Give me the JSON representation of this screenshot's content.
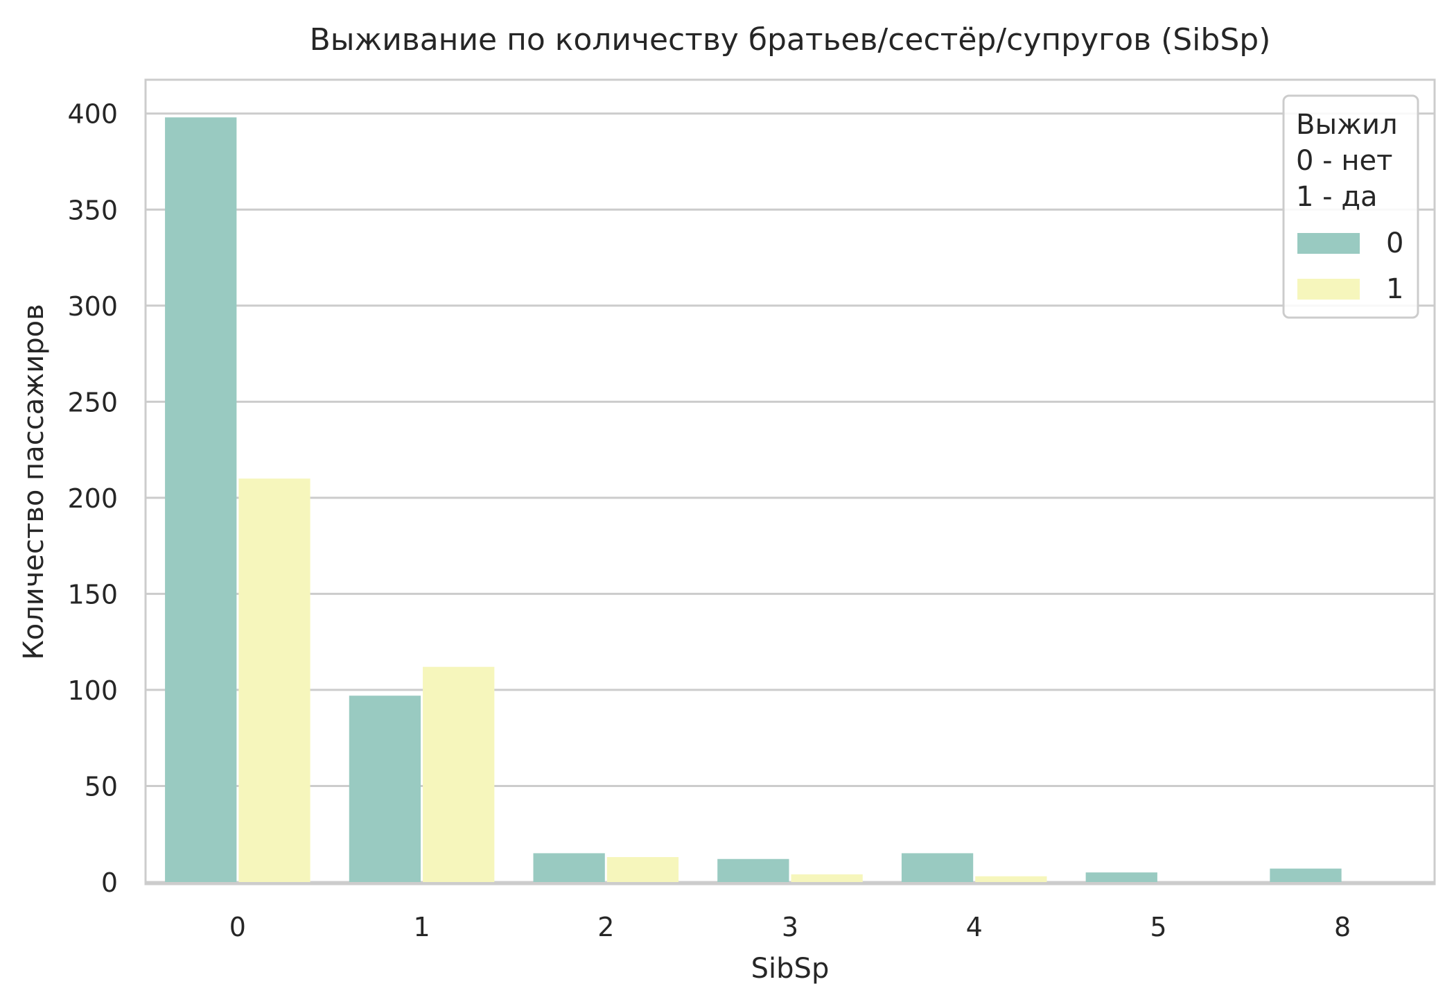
{
  "chart_data": {
    "type": "bar",
    "title": "Выживание по количеству братьев/сестёр/супругов (SibSp)",
    "xlabel": "SibSp",
    "ylabel": "Количество пассажиров",
    "categories": [
      "0",
      "1",
      "2",
      "3",
      "4",
      "5",
      "8"
    ],
    "yticks": [
      0,
      50,
      100,
      150,
      200,
      250,
      300,
      350,
      400
    ],
    "ylim": [
      0,
      418
    ],
    "grid": true,
    "legend_position": "top-right",
    "legend_title": [
      "Выжил",
      "0 - нет",
      "1 - да"
    ],
    "series": [
      {
        "name": "0",
        "color": "#99cac1",
        "values": [
          398,
          97,
          15,
          12,
          15,
          5,
          7
        ]
      },
      {
        "name": "1",
        "color": "#f6f6bc",
        "values": [
          210,
          112,
          13,
          4,
          3,
          0,
          0
        ]
      }
    ]
  }
}
